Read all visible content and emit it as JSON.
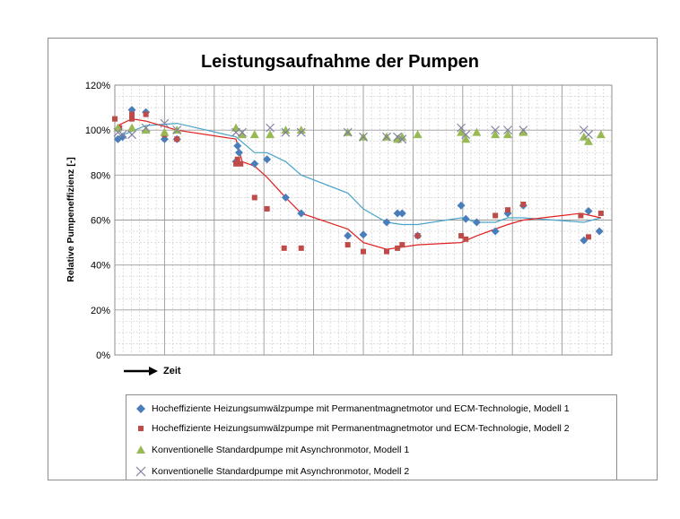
{
  "chart_data": {
    "type": "scatter",
    "title": "Leistungsaufnahme der Pumpen",
    "ylabel": "Relative Pumpeneffizienz [-]",
    "xlabel": "Zeit",
    "ylim": [
      0,
      1.2
    ],
    "yticks": [
      "0%",
      "20%",
      "40%",
      "60%",
      "80%",
      "100%",
      "120%"
    ],
    "x_range": [
      0,
      32
    ],
    "grid": true,
    "legend_position": "bottom",
    "series": [
      {
        "name": "Hocheffiziente Heizungsumwälzpumpe mit Permanentmagnetmotor und ECM-Technologie, Modell 1",
        "marker": "diamond",
        "color": "#4a7ebb",
        "points": [
          [
            0.2,
            0.96
          ],
          [
            0.5,
            0.97
          ],
          [
            1.1,
            1.09
          ],
          [
            2.0,
            1.08
          ],
          [
            3.2,
            0.96
          ],
          [
            4.0,
            0.96
          ],
          [
            7.8,
            0.86
          ],
          [
            7.9,
            0.93
          ],
          [
            8.0,
            0.9
          ],
          [
            9.0,
            0.85
          ],
          [
            9.8,
            0.87
          ],
          [
            11.0,
            0.7
          ],
          [
            12.0,
            0.63
          ],
          [
            15.0,
            0.53
          ],
          [
            16.0,
            0.535
          ],
          [
            17.5,
            0.59
          ],
          [
            18.2,
            0.63
          ],
          [
            18.5,
            0.63
          ],
          [
            19.5,
            0.53
          ],
          [
            22.3,
            0.665
          ],
          [
            22.6,
            0.605
          ],
          [
            23.3,
            0.59
          ],
          [
            24.5,
            0.55
          ],
          [
            25.3,
            0.63
          ],
          [
            26.3,
            0.665
          ],
          [
            30.2,
            0.51
          ],
          [
            30.5,
            0.64
          ],
          [
            31.2,
            0.55
          ]
        ]
      },
      {
        "name": "Hocheffiziente Heizungsumwälzpumpe mit Permanentmagnetmotor und ECM-Technologie, Modell 2",
        "marker": "square",
        "color": "#be4b48",
        "points": [
          [
            0.0,
            1.05
          ],
          [
            0.3,
            1.01
          ],
          [
            1.1,
            1.07
          ],
          [
            1.1,
            1.05
          ],
          [
            2.0,
            1.07
          ],
          [
            3.2,
            0.98
          ],
          [
            4.0,
            0.96
          ],
          [
            7.8,
            0.85
          ],
          [
            7.9,
            0.87
          ],
          [
            8.1,
            0.85
          ],
          [
            9.0,
            0.7
          ],
          [
            9.8,
            0.65
          ],
          [
            10.9,
            0.475
          ],
          [
            12.0,
            0.475
          ],
          [
            15.0,
            0.49
          ],
          [
            16.0,
            0.46
          ],
          [
            17.5,
            0.46
          ],
          [
            18.2,
            0.475
          ],
          [
            18.5,
            0.49
          ],
          [
            19.5,
            0.53
          ],
          [
            22.3,
            0.53
          ],
          [
            22.6,
            0.515
          ],
          [
            24.5,
            0.62
          ],
          [
            25.3,
            0.645
          ],
          [
            26.3,
            0.67
          ],
          [
            30.0,
            0.62
          ],
          [
            30.5,
            0.525
          ],
          [
            31.3,
            0.63
          ]
        ]
      },
      {
        "name": "Konventionelle Standardpumpe mit Asynchronmotor, Modell 1",
        "marker": "triangle",
        "color": "#98b954",
        "points": [
          [
            0.2,
            1.01
          ],
          [
            1.1,
            1.01
          ],
          [
            2.0,
            1.0
          ],
          [
            3.2,
            0.99
          ],
          [
            4.0,
            1.0
          ],
          [
            7.8,
            1.01
          ],
          [
            8.2,
            0.98
          ],
          [
            9.0,
            0.98
          ],
          [
            10.0,
            0.98
          ],
          [
            11.0,
            1.0
          ],
          [
            12.0,
            1.0
          ],
          [
            15.0,
            0.99
          ],
          [
            16.0,
            0.97
          ],
          [
            17.5,
            0.97
          ],
          [
            18.2,
            0.96
          ],
          [
            18.5,
            0.97
          ],
          [
            19.5,
            0.98
          ],
          [
            22.3,
            0.99
          ],
          [
            22.6,
            0.96
          ],
          [
            23.3,
            0.99
          ],
          [
            24.5,
            0.98
          ],
          [
            25.3,
            0.98
          ],
          [
            26.3,
            0.99
          ],
          [
            30.2,
            0.97
          ],
          [
            30.5,
            0.95
          ],
          [
            31.3,
            0.98
          ]
        ]
      },
      {
        "name": "Konventionelle Standardpumpe mit Asynchronmotor, Modell 2",
        "marker": "x",
        "color": "#7f7f9f",
        "points": [
          [
            0.2,
            0.99
          ],
          [
            0.5,
            0.98
          ],
          [
            1.1,
            0.98
          ],
          [
            2.0,
            1.01
          ],
          [
            3.2,
            1.03
          ],
          [
            4.0,
            1.0
          ],
          [
            7.8,
            0.99
          ],
          [
            8.2,
            0.99
          ],
          [
            10.0,
            1.01
          ],
          [
            11.0,
            0.99
          ],
          [
            12.0,
            0.99
          ],
          [
            15.0,
            0.99
          ],
          [
            16.0,
            0.97
          ],
          [
            17.5,
            0.97
          ],
          [
            18.2,
            0.97
          ],
          [
            18.5,
            0.96
          ],
          [
            22.3,
            1.01
          ],
          [
            22.6,
            0.98
          ],
          [
            24.5,
            1.0
          ],
          [
            25.3,
            1.0
          ],
          [
            26.3,
            1.0
          ],
          [
            30.2,
            1.0
          ],
          [
            30.5,
            0.98
          ]
        ]
      }
    ],
    "trendlines": [
      {
        "color": "#4aa3c8",
        "points": [
          [
            0.2,
            0.97
          ],
          [
            2.0,
            1.02
          ],
          [
            4.0,
            1.03
          ],
          [
            7.8,
            0.97
          ],
          [
            9.0,
            0.9
          ],
          [
            9.8,
            0.9
          ],
          [
            11.0,
            0.86
          ],
          [
            12.0,
            0.8
          ],
          [
            15.0,
            0.72
          ],
          [
            16.0,
            0.65
          ],
          [
            17.5,
            0.59
          ],
          [
            18.5,
            0.58
          ],
          [
            19.5,
            0.58
          ],
          [
            22.3,
            0.61
          ],
          [
            23.3,
            0.59
          ],
          [
            24.5,
            0.59
          ],
          [
            25.3,
            0.61
          ],
          [
            26.3,
            0.61
          ],
          [
            30.2,
            0.59
          ],
          [
            31.3,
            0.61
          ]
        ]
      },
      {
        "color": "#e02020",
        "points": [
          [
            0.2,
            1.02
          ],
          [
            1.1,
            1.05
          ],
          [
            2.0,
            1.04
          ],
          [
            4.0,
            1.0
          ],
          [
            7.8,
            0.96
          ],
          [
            8.2,
            0.86
          ],
          [
            9.0,
            0.84
          ],
          [
            9.8,
            0.79
          ],
          [
            11.0,
            0.7
          ],
          [
            12.0,
            0.63
          ],
          [
            15.0,
            0.56
          ],
          [
            16.0,
            0.5
          ],
          [
            17.5,
            0.47
          ],
          [
            18.5,
            0.48
          ],
          [
            19.5,
            0.49
          ],
          [
            22.3,
            0.5
          ],
          [
            23.3,
            0.53
          ],
          [
            24.5,
            0.56
          ],
          [
            25.3,
            0.58
          ],
          [
            26.3,
            0.6
          ],
          [
            30.0,
            0.63
          ],
          [
            31.3,
            0.61
          ]
        ]
      }
    ]
  }
}
